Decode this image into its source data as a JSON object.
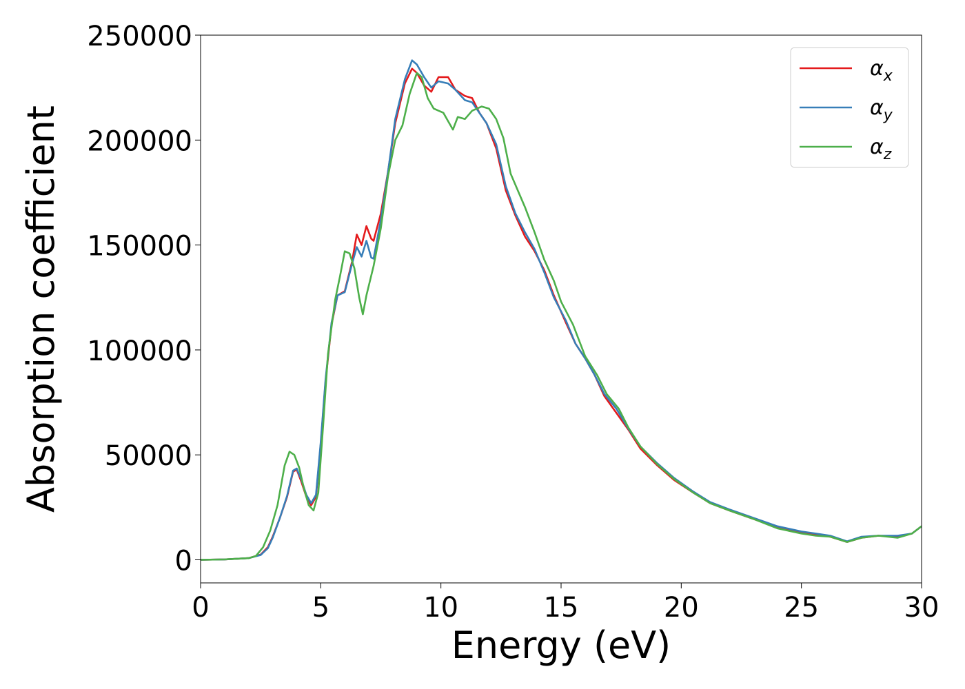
{
  "chart_data": {
    "type": "line",
    "title": "",
    "xlabel": "Energy (eV)",
    "ylabel": "Absorption coefficient",
    "xlim": [
      0,
      30
    ],
    "ylim": [
      -11000,
      250000
    ],
    "xticks": [
      0,
      5,
      10,
      15,
      20,
      25,
      30
    ],
    "yticks": [
      0,
      50000,
      100000,
      150000,
      200000,
      250000
    ],
    "xtick_labels": [
      "0",
      "5",
      "10",
      "15",
      "20",
      "25",
      "30"
    ],
    "ytick_labels": [
      "0",
      "50000",
      "100000",
      "150000",
      "200000",
      "250000"
    ],
    "grid": false,
    "legend_position": "top-right",
    "series": [
      {
        "name": "αx",
        "base": "α",
        "sub": "x",
        "color": "#e41a1c",
        "points": [
          [
            0,
            0
          ],
          [
            1,
            200
          ],
          [
            2,
            800
          ],
          [
            2.5,
            2500
          ],
          [
            2.8,
            6000
          ],
          [
            3.0,
            11000
          ],
          [
            3.3,
            20000
          ],
          [
            3.6,
            30000
          ],
          [
            3.85,
            42000
          ],
          [
            4.0,
            43000
          ],
          [
            4.2,
            37000
          ],
          [
            4.4,
            30000
          ],
          [
            4.6,
            26000
          ],
          [
            4.8,
            30000
          ],
          [
            5.0,
            55000
          ],
          [
            5.2,
            85000
          ],
          [
            5.45,
            112000
          ],
          [
            5.7,
            126000
          ],
          [
            6.0,
            128000
          ],
          [
            6.3,
            142000
          ],
          [
            6.5,
            155000
          ],
          [
            6.7,
            150000
          ],
          [
            6.9,
            159000
          ],
          [
            7.1,
            153000
          ],
          [
            7.2,
            152000
          ],
          [
            7.5,
            165000
          ],
          [
            7.8,
            185000
          ],
          [
            8.1,
            208000
          ],
          [
            8.5,
            227000
          ],
          [
            8.8,
            234000
          ],
          [
            9.0,
            232000
          ],
          [
            9.3,
            226000
          ],
          [
            9.6,
            223000
          ],
          [
            9.9,
            230000
          ],
          [
            10.3,
            230000
          ],
          [
            10.6,
            224000
          ],
          [
            11.0,
            221000
          ],
          [
            11.3,
            220000
          ],
          [
            11.6,
            213000
          ],
          [
            11.9,
            208000
          ],
          [
            12.3,
            196000
          ],
          [
            12.7,
            176000
          ],
          [
            13.1,
            164000
          ],
          [
            13.5,
            154000
          ],
          [
            13.9,
            147000
          ],
          [
            14.3,
            138000
          ],
          [
            14.7,
            126000
          ],
          [
            15.2,
            113000
          ],
          [
            15.6,
            103000
          ],
          [
            16.0,
            96000
          ],
          [
            16.4,
            88000
          ],
          [
            16.8,
            78000
          ],
          [
            17.3,
            70000
          ],
          [
            17.8,
            62000
          ],
          [
            18.3,
            53000
          ],
          [
            19.0,
            45000
          ],
          [
            19.7,
            38000
          ],
          [
            20.5,
            32000
          ],
          [
            21.2,
            27000
          ],
          [
            22.0,
            23500
          ],
          [
            23.0,
            19500
          ],
          [
            24.0,
            15500
          ],
          [
            25.0,
            13000
          ],
          [
            25.6,
            12000
          ],
          [
            26.2,
            11000
          ],
          [
            26.9,
            8500
          ],
          [
            27.5,
            10500
          ],
          [
            28.2,
            11500
          ],
          [
            29.0,
            11000
          ],
          [
            29.6,
            12500
          ],
          [
            30,
            16000
          ]
        ]
      },
      {
        "name": "αy",
        "base": "α",
        "sub": "y",
        "color": "#377eb8",
        "points": [
          [
            0,
            0
          ],
          [
            1,
            200
          ],
          [
            2,
            800
          ],
          [
            2.5,
            2300
          ],
          [
            2.8,
            5500
          ],
          [
            3.0,
            10500
          ],
          [
            3.3,
            20000
          ],
          [
            3.6,
            30500
          ],
          [
            3.85,
            42500
          ],
          [
            4.0,
            43500
          ],
          [
            4.2,
            38000
          ],
          [
            4.4,
            31000
          ],
          [
            4.6,
            27000
          ],
          [
            4.8,
            31000
          ],
          [
            5.0,
            56000
          ],
          [
            5.2,
            86000
          ],
          [
            5.45,
            113000
          ],
          [
            5.7,
            126000
          ],
          [
            6.0,
            127500
          ],
          [
            6.3,
            141000
          ],
          [
            6.5,
            149000
          ],
          [
            6.7,
            144500
          ],
          [
            6.9,
            152000
          ],
          [
            7.1,
            144000
          ],
          [
            7.2,
            143500
          ],
          [
            7.5,
            162000
          ],
          [
            7.8,
            185000
          ],
          [
            8.1,
            210000
          ],
          [
            8.5,
            229000
          ],
          [
            8.8,
            238000
          ],
          [
            9.0,
            236000
          ],
          [
            9.3,
            230000
          ],
          [
            9.6,
            225000
          ],
          [
            9.9,
            228000
          ],
          [
            10.3,
            227000
          ],
          [
            10.6,
            224000
          ],
          [
            11.0,
            219000
          ],
          [
            11.3,
            218000
          ],
          [
            11.6,
            213000
          ],
          [
            11.9,
            208000
          ],
          [
            12.3,
            198000
          ],
          [
            12.7,
            178000
          ],
          [
            13.1,
            165000
          ],
          [
            13.5,
            156000
          ],
          [
            13.9,
            148000
          ],
          [
            14.3,
            137000
          ],
          [
            14.7,
            125000
          ],
          [
            15.2,
            114000
          ],
          [
            15.6,
            103000
          ],
          [
            16.0,
            96000
          ],
          [
            16.4,
            88000
          ],
          [
            16.8,
            79000
          ],
          [
            17.3,
            72000
          ],
          [
            17.8,
            62500
          ],
          [
            18.3,
            54000
          ],
          [
            19.0,
            46000
          ],
          [
            19.7,
            39000
          ],
          [
            20.5,
            32500
          ],
          [
            21.2,
            27500
          ],
          [
            22.0,
            24000
          ],
          [
            23.0,
            20000
          ],
          [
            24.0,
            16000
          ],
          [
            25.0,
            13500
          ],
          [
            25.6,
            12500
          ],
          [
            26.2,
            11500
          ],
          [
            26.9,
            8800
          ],
          [
            27.5,
            11000
          ],
          [
            28.2,
            11500
          ],
          [
            29.0,
            11500
          ],
          [
            29.6,
            12500
          ],
          [
            30,
            16000
          ]
        ]
      },
      {
        "name": "αz",
        "base": "α",
        "sub": "z",
        "color": "#4daf4a",
        "points": [
          [
            0,
            0
          ],
          [
            1,
            200
          ],
          [
            2,
            800
          ],
          [
            2.3,
            1800
          ],
          [
            2.6,
            6000
          ],
          [
            2.9,
            14000
          ],
          [
            3.2,
            26000
          ],
          [
            3.5,
            45000
          ],
          [
            3.7,
            51500
          ],
          [
            3.9,
            50000
          ],
          [
            4.1,
            44000
          ],
          [
            4.3,
            34000
          ],
          [
            4.5,
            26000
          ],
          [
            4.7,
            23500
          ],
          [
            4.9,
            32000
          ],
          [
            5.1,
            64000
          ],
          [
            5.3,
            98000
          ],
          [
            5.6,
            124000
          ],
          [
            5.8,
            135000
          ],
          [
            6.0,
            147000
          ],
          [
            6.2,
            146000
          ],
          [
            6.4,
            139000
          ],
          [
            6.6,
            125000
          ],
          [
            6.75,
            117000
          ],
          [
            6.9,
            126000
          ],
          [
            7.2,
            140000
          ],
          [
            7.5,
            158000
          ],
          [
            7.8,
            183000
          ],
          [
            8.1,
            200000
          ],
          [
            8.4,
            207000
          ],
          [
            8.7,
            222000
          ],
          [
            9.0,
            232000
          ],
          [
            9.2,
            230000
          ],
          [
            9.45,
            220000
          ],
          [
            9.7,
            215000
          ],
          [
            10.1,
            213000
          ],
          [
            10.3,
            209000
          ],
          [
            10.5,
            205000
          ],
          [
            10.7,
            211000
          ],
          [
            11.0,
            210000
          ],
          [
            11.3,
            214000
          ],
          [
            11.7,
            216000
          ],
          [
            12.0,
            215000
          ],
          [
            12.3,
            210000
          ],
          [
            12.6,
            201000
          ],
          [
            12.9,
            184000
          ],
          [
            13.2,
            176000
          ],
          [
            13.5,
            168000
          ],
          [
            13.9,
            156000
          ],
          [
            14.3,
            143000
          ],
          [
            14.7,
            133000
          ],
          [
            15.0,
            123000
          ],
          [
            15.5,
            112000
          ],
          [
            16.0,
            97000
          ],
          [
            16.5,
            88000
          ],
          [
            16.9,
            79000
          ],
          [
            17.4,
            72000
          ],
          [
            17.8,
            63000
          ],
          [
            18.3,
            54000
          ],
          [
            19.0,
            45500
          ],
          [
            19.7,
            38500
          ],
          [
            20.5,
            32000
          ],
          [
            21.2,
            27000
          ],
          [
            22.0,
            23500
          ],
          [
            23.0,
            19500
          ],
          [
            24.0,
            15000
          ],
          [
            25.0,
            12500
          ],
          [
            25.6,
            11500
          ],
          [
            26.2,
            11000
          ],
          [
            26.9,
            8500
          ],
          [
            27.5,
            10500
          ],
          [
            28.2,
            11500
          ],
          [
            29.0,
            10500
          ],
          [
            29.6,
            12500
          ],
          [
            30,
            16000
          ]
        ]
      }
    ]
  }
}
